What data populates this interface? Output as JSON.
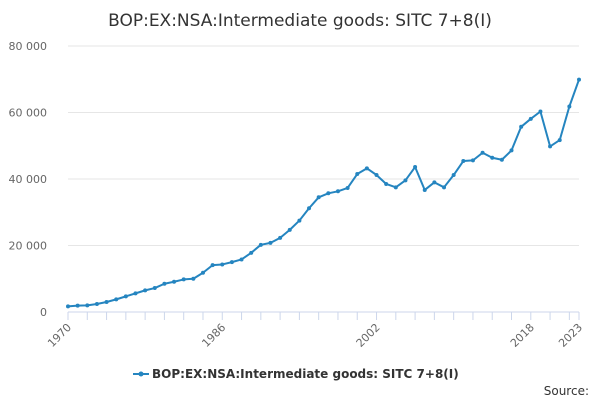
{
  "chart_data": {
    "type": "line",
    "title": "BOP:EX:NSA:Intermediate goods: SITC 7+8(I)",
    "xlabel": "",
    "ylabel": "",
    "xlim": [
      1970,
      2023
    ],
    "ylim": [
      0,
      80000
    ],
    "x_ticks": [
      1970,
      1986,
      2002,
      2018,
      2023
    ],
    "y_ticks": [
      0,
      20000,
      40000,
      60000,
      80000
    ],
    "y_tick_labels": [
      "0",
      "20 000",
      "40 000",
      "60 000",
      "80 000"
    ],
    "grid": true,
    "legend_position": "bottom-center",
    "series": [
      {
        "name": "BOP:EX:NSA:Intermediate goods: SITC 7+8(I)",
        "color": "#2585c0",
        "x": [
          1970,
          1971,
          1972,
          1973,
          1974,
          1975,
          1976,
          1977,
          1978,
          1979,
          1980,
          1981,
          1982,
          1983,
          1984,
          1985,
          1986,
          1987,
          1988,
          1989,
          1990,
          1991,
          1992,
          1993,
          1994,
          1995,
          1996,
          1997,
          1998,
          1999,
          2000,
          2001,
          2002,
          2003,
          2004,
          2005,
          2006,
          2007,
          2008,
          2009,
          2010,
          2011,
          2012,
          2013,
          2014,
          2015,
          2016,
          2017,
          2018,
          2019,
          2020,
          2021,
          2022,
          2023
        ],
        "values": [
          1700,
          1900,
          2000,
          2400,
          3000,
          3800,
          4700,
          5600,
          6500,
          7200,
          8500,
          9100,
          9800,
          10000,
          11800,
          14100,
          14300,
          15000,
          15800,
          17800,
          20200,
          20800,
          22300,
          24700,
          27500,
          31200,
          34500,
          35700,
          36300,
          37300,
          41500,
          43200,
          41200,
          38500,
          37500,
          39600,
          43600,
          36700,
          39000,
          37500,
          41200,
          45400,
          45600,
          47900,
          46400,
          45800,
          48600,
          55700,
          58100,
          60300,
          49800,
          51700,
          61800,
          69900
        ]
      }
    ],
    "legend": [
      "BOP:EX:NSA:Intermediate goods: SITC 7+8(I)"
    ],
    "credit": "Source:"
  }
}
